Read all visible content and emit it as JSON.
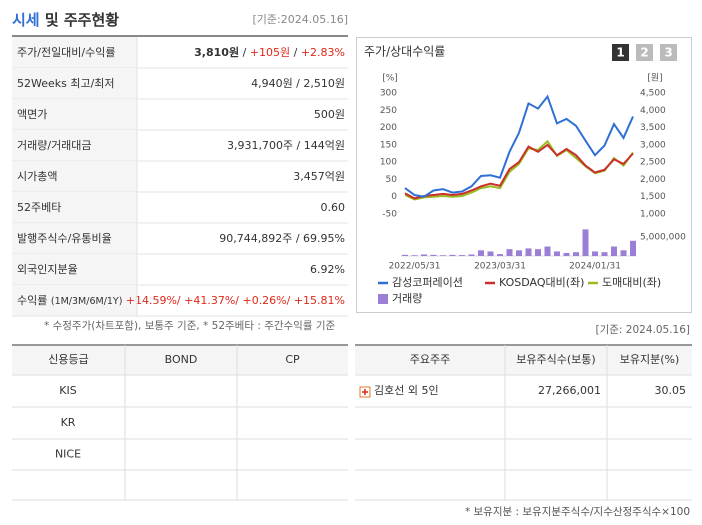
{
  "header": {
    "title": "시세",
    "title_rest": "및 주주현황",
    "date": "[기준:2024.05.16]"
  },
  "summary": {
    "rows": [
      {
        "label": [
          {
            "text": "주가/전일대비/수익률"
          }
        ],
        "value": [
          {
            "text": "3,810원",
            "bold": true
          },
          {
            "text": " / "
          },
          {
            "text": "+105원",
            "color": "#e0281a"
          },
          {
            "text": " / "
          },
          {
            "text": "+2.83%",
            "color": "#e0281a"
          }
        ]
      },
      {
        "label": [
          {
            "text": "52Weeks 최고/최저"
          }
        ],
        "value": [
          {
            "text": "4,940원 / 2,510원"
          }
        ]
      },
      {
        "label": [
          {
            "text": "액면가"
          }
        ],
        "value": [
          {
            "text": "500원"
          }
        ]
      },
      {
        "label": [
          {
            "text": "거래량/거래대금"
          }
        ],
        "value": [
          {
            "text": "3,931,700주 / 144억원"
          }
        ]
      },
      {
        "label": [
          {
            "text": "시가총액"
          }
        ],
        "value": [
          {
            "text": "3,457억원"
          }
        ]
      },
      {
        "label": [
          {
            "text": "52주베타"
          }
        ],
        "value": [
          {
            "text": "0.60"
          }
        ]
      },
      {
        "label": [
          {
            "text": "발행주식수/유통비율"
          }
        ],
        "value": [
          {
            "text": "90,744,892주 / 69.95%"
          }
        ]
      },
      {
        "label": [
          {
            "text": "외국인지분율"
          }
        ],
        "value": [
          {
            "text": "6.92%"
          }
        ]
      },
      {
        "label": [
          {
            "text": "수익률 "
          },
          {
            "text": "(1M/3M/6M/1Y)",
            "small": true
          }
        ],
        "value": [
          {
            "text": "+14.59%/ +41.37%/ +0.26%/ +15.81%",
            "color": "#e0281a"
          }
        ]
      }
    ]
  },
  "chart_data": {
    "type": "line",
    "title": "주가/상대수익률",
    "tabs": [
      "1",
      "2",
      "3"
    ],
    "y_unit": "[%]",
    "y2_unit": "[원]",
    "categories": [
      null,
      "2022/05/31",
      null,
      null,
      null,
      null,
      null,
      null,
      null,
      null,
      "2023/03/31",
      null,
      null,
      null,
      null,
      null,
      null,
      null,
      null,
      null,
      "2024/01/31",
      null,
      null,
      null,
      null
    ],
    "ylim": [
      -50,
      300
    ],
    "yticks": [
      300,
      250,
      200,
      150,
      100,
      50,
      0,
      -50
    ],
    "y2lim": [
      1000,
      4500
    ],
    "y2ticks": [
      {
        "value": 4500,
        "label": "4,500"
      },
      {
        "value": 4000,
        "label": "4,000"
      },
      {
        "value": 3500,
        "label": "3,500"
      },
      {
        "value": 3000,
        "label": "3,000"
      },
      {
        "value": 2500,
        "label": "2,500"
      },
      {
        "value": 2000,
        "label": "2,000"
      },
      {
        "value": 1500,
        "label": "1,500"
      },
      {
        "value": 1000,
        "label": "1,000"
      }
    ],
    "y3lim": [
      0,
      5000000
    ],
    "y3ticks": [
      {
        "value": 5000000,
        "label": "5,000,000"
      }
    ],
    "series": [
      {
        "name": "감성코퍼레이션",
        "color": "#2f6fd6",
        "values": [
          25,
          5,
          0,
          18,
          22,
          12,
          15,
          30,
          60,
          62,
          55,
          130,
          185,
          270,
          255,
          290,
          212,
          225,
          205,
          162,
          120,
          148,
          210,
          170,
          232
        ]
      },
      {
        "name": "KOSDAQ대비(좌)",
        "color": "#c9302c",
        "values": [
          10,
          -5,
          2,
          5,
          8,
          5,
          8,
          18,
          30,
          38,
          32,
          80,
          100,
          145,
          130,
          150,
          120,
          138,
          120,
          90,
          70,
          78,
          108,
          95,
          125
        ]
      },
      {
        "name": "도매대비(좌)",
        "color": "#9aba1f",
        "values": [
          5,
          -8,
          -2,
          0,
          2,
          0,
          2,
          12,
          25,
          30,
          25,
          72,
          95,
          140,
          135,
          160,
          118,
          135,
          112,
          88,
          68,
          75,
          112,
          90,
          128
        ]
      },
      {
        "name": "거래량",
        "color": "#9b7fd6",
        "type": "bar",
        "axis": "y3",
        "values": [
          300000,
          200000,
          400000,
          300000,
          200000,
          300000,
          250000,
          400000,
          1500000,
          1200000,
          500000,
          1800000,
          1500000,
          2000000,
          1800000,
          2500000,
          1200000,
          800000,
          1000000,
          7000000,
          1200000,
          1000000,
          2500000,
          1500000,
          4000000
        ]
      }
    ]
  },
  "footnote": "* 수정주가(차트포함), 보통주 기준, * 52주베타 : 주간수익률 기준",
  "lower_date": "[기준: 2024.05.16]",
  "credit": {
    "headers": [
      "신용등급",
      "BOND",
      "CP"
    ],
    "rows": [
      "KIS",
      "KR",
      "NICE"
    ]
  },
  "holders": {
    "headers": [
      "주요주주",
      "보유주식수(보통)",
      "보유지분(%)"
    ],
    "rows": [
      [
        "김호선 외 5인",
        "27,266,001",
        "30.05"
      ]
    ]
  },
  "holders_note": "* 보유지분 : 보유지분주식수/지수산정주식수×100"
}
